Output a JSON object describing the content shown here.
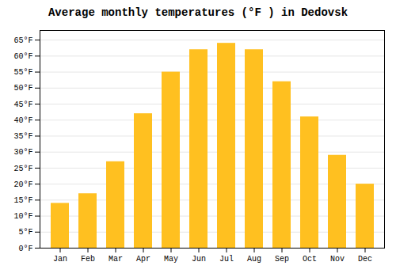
{
  "chart_data": {
    "type": "bar",
    "title": "Average monthly temperatures (°F ) in Dedovsk",
    "categories": [
      "Jan",
      "Feb",
      "Mar",
      "Apr",
      "May",
      "Jun",
      "Jul",
      "Aug",
      "Sep",
      "Oct",
      "Nov",
      "Dec"
    ],
    "values": [
      14,
      17,
      27,
      42,
      55,
      62,
      64,
      62,
      52,
      41,
      29,
      20
    ],
    "color": "#FFC020",
    "ylim": [
      0,
      68
    ],
    "yticks": [
      {
        "value": 0,
        "label": "0°F"
      },
      {
        "value": 5,
        "label": "5°F"
      },
      {
        "value": 10,
        "label": "10°F"
      },
      {
        "value": 15,
        "label": "15°F"
      },
      {
        "value": 20,
        "label": "20°F"
      },
      {
        "value": 25,
        "label": "25°F"
      },
      {
        "value": 30,
        "label": "30°F"
      },
      {
        "value": 35,
        "label": "35°F"
      },
      {
        "value": 40,
        "label": "40°F"
      },
      {
        "value": 45,
        "label": "45°F"
      },
      {
        "value": 50,
        "label": "50°F"
      },
      {
        "value": 55,
        "label": "55°F"
      },
      {
        "value": 60,
        "label": "60°F"
      },
      {
        "value": 65,
        "label": "65°F"
      }
    ],
    "grid": true
  }
}
